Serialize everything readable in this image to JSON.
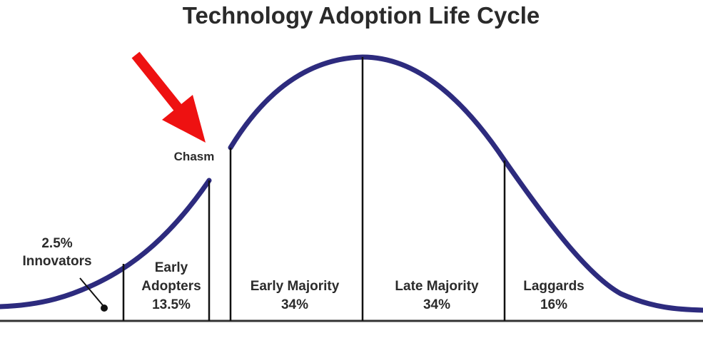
{
  "title": "Technology Adoption Life Cycle",
  "chasm": {
    "label": "Chasm"
  },
  "segments": [
    {
      "id": "innovators",
      "name": "Innovators",
      "percent": "2.5%"
    },
    {
      "id": "early-adopters",
      "name_line1": "Early",
      "name_line2": "Adopters",
      "percent": "13.5%"
    },
    {
      "id": "early-majority",
      "name": "Early Majority",
      "percent": "34%"
    },
    {
      "id": "late-majority",
      "name": "Late Majority",
      "percent": "34%"
    },
    {
      "id": "laggards",
      "name": "Laggards",
      "percent": "16%"
    }
  ],
  "colors": {
    "curve": "#2d2b7e",
    "divider": "#111111",
    "baseline": "#333333",
    "arrow": "#ee1111",
    "text": "#2b2b2b"
  },
  "icons": {
    "arrow": "red-arrow-icon"
  }
}
